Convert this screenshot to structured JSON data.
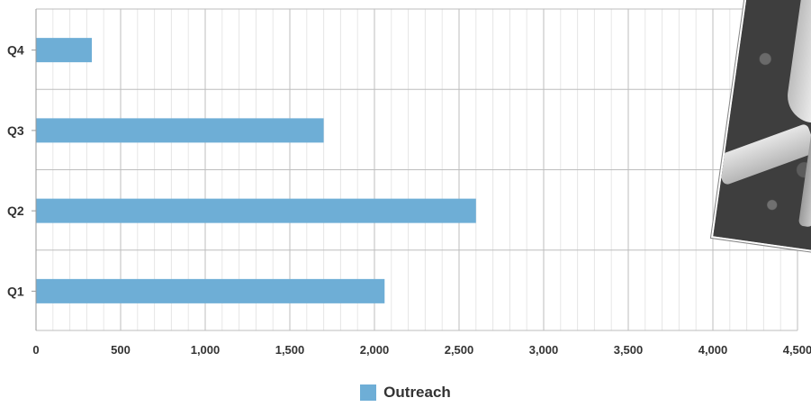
{
  "chart_data": {
    "type": "bar",
    "orientation": "horizontal",
    "categories": [
      "Q4",
      "Q3",
      "Q2",
      "Q1"
    ],
    "series": [
      {
        "name": "Outreach",
        "values": [
          330,
          1700,
          2600,
          2060
        ],
        "color": "#6eaed6"
      }
    ],
    "xlim": [
      0,
      4500
    ],
    "x_ticks": [
      "0",
      "500",
      "1,000",
      "1,500",
      "2,000",
      "2,500",
      "3,000",
      "3,500",
      "4,000",
      "4,500"
    ],
    "grid": true,
    "legend_position": "bottom-center"
  },
  "colors": {
    "grid_major": "#bdbdbd",
    "grid_minor": "#e6e6e6",
    "axis": "#999999",
    "text": "#333333"
  },
  "legend": {
    "label": "Outreach"
  },
  "decor": {
    "icon": "photo-icon"
  }
}
